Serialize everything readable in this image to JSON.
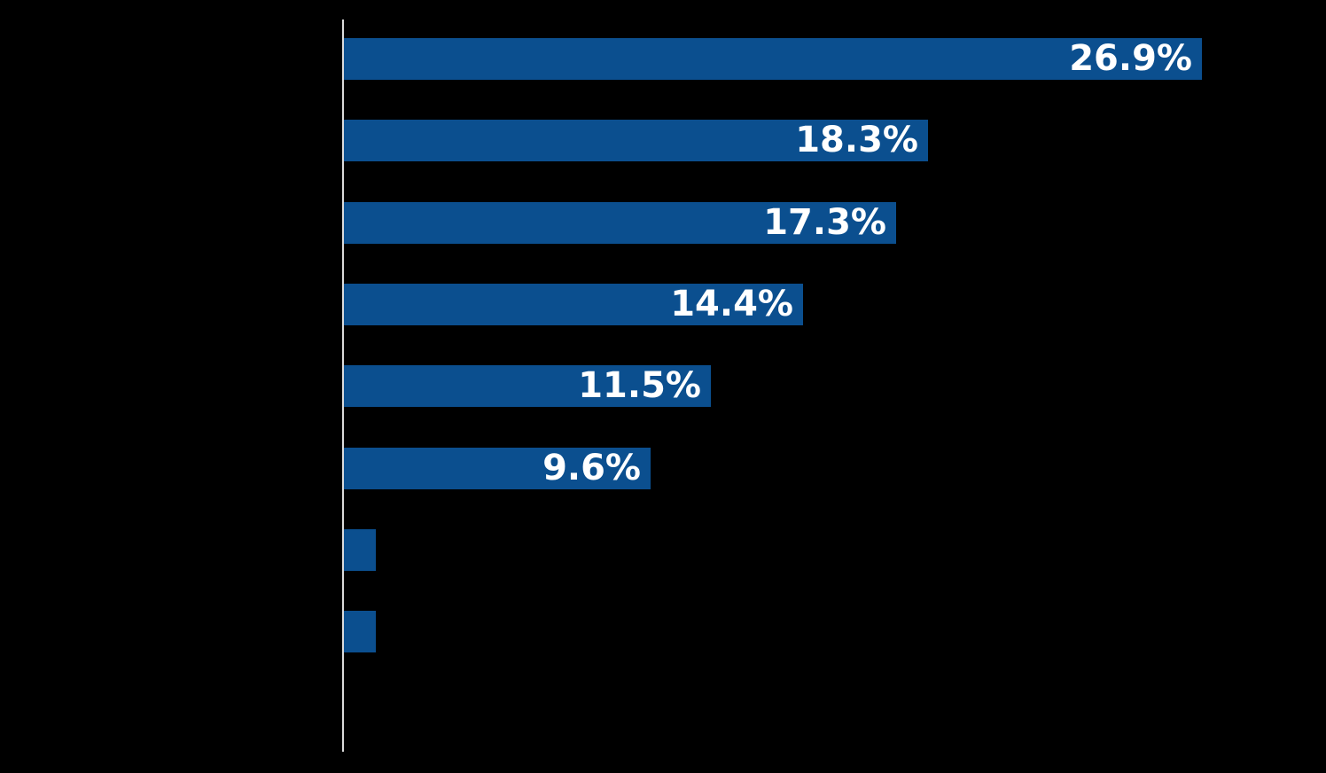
{
  "chart_data": {
    "type": "bar",
    "orientation": "horizontal",
    "title": "",
    "xlabel": "",
    "ylabel": "",
    "xlim": [
      0,
      30.8
    ],
    "legend": false,
    "gridlines": false,
    "tick_labels_visible": false,
    "category_labels_visible": false,
    "y_axis_line_visible": true,
    "bars": [
      {
        "value": 26.9,
        "label": "26.9%"
      },
      {
        "value": 18.3,
        "label": "18.3%"
      },
      {
        "value": 17.3,
        "label": "17.3%"
      },
      {
        "value": 14.4,
        "label": "14.4%"
      },
      {
        "value": 11.5,
        "label": "11.5%"
      },
      {
        "value": 9.6,
        "label": "9.6%"
      },
      {
        "value": 1.0,
        "label": ""
      },
      {
        "value": 1.0,
        "label": ""
      }
    ]
  },
  "colors": {
    "background": "#000000",
    "bar": "#0B4F8F",
    "label_text": "#FFFFFF",
    "axis_line": "#DCDCDC"
  }
}
